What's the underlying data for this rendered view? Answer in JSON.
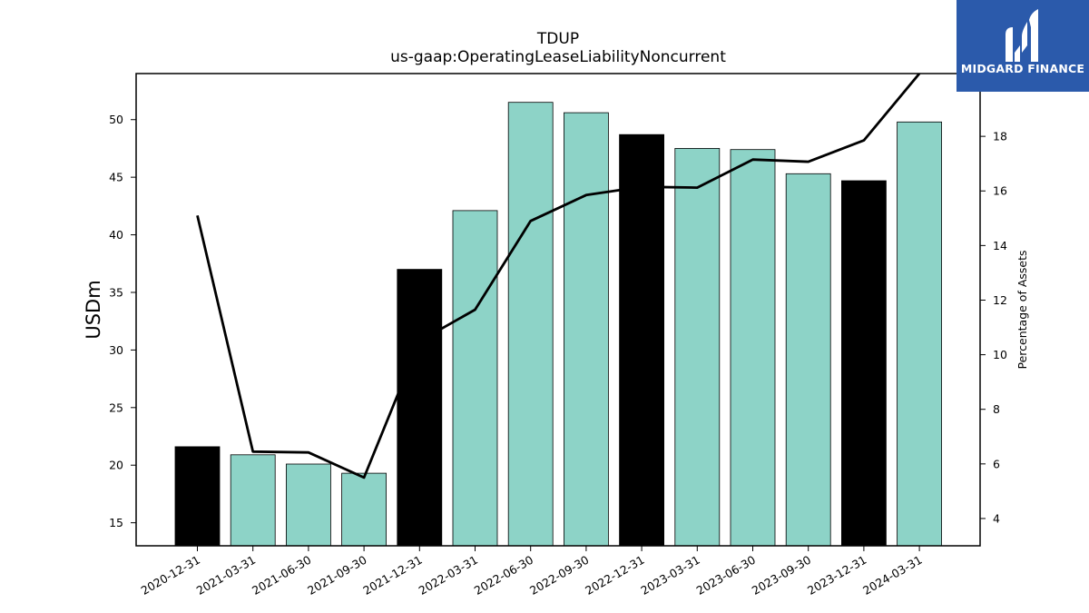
{
  "chart_data": {
    "type": "bar",
    "title": "TDUP",
    "subtitle": "us-gaap:OperatingLeaseLiabilityNoncurrent",
    "ylabel": "USDm",
    "y2label": "Percentage of Assets",
    "categories": [
      "2020-12-31",
      "2021-03-31",
      "2021-06-30",
      "2021-09-30",
      "2021-12-31",
      "2022-03-31",
      "2022-06-30",
      "2022-09-30",
      "2022-12-31",
      "2023-03-31",
      "2023-06-30",
      "2023-09-30",
      "2023-12-31",
      "2024-03-31"
    ],
    "series": [
      {
        "kind": "bar",
        "axis": "left",
        "values": [
          21.6,
          20.9,
          20.1,
          19.3,
          37.0,
          42.1,
          51.5,
          50.6,
          48.7,
          47.5,
          47.4,
          45.3,
          44.7,
          49.8
        ],
        "colors": [
          "#000000",
          "#8dd3c7",
          "#8dd3c7",
          "#8dd3c7",
          "#000000",
          "#8dd3c7",
          "#8dd3c7",
          "#8dd3c7",
          "#000000",
          "#8dd3c7",
          "#8dd3c7",
          "#8dd3c7",
          "#000000",
          "#8dd3c7"
        ]
      },
      {
        "kind": "line",
        "axis": "right",
        "color": "#000000",
        "values": [
          15.1,
          6.45,
          6.42,
          5.5,
          10.5,
          11.65,
          14.9,
          15.85,
          16.15,
          16.12,
          17.15,
          17.07,
          17.85,
          20.3
        ]
      }
    ],
    "ylim": [
      13,
      54
    ],
    "yticks": [
      15,
      20,
      25,
      30,
      35,
      40,
      45,
      50
    ],
    "y2lim": [
      3,
      20.3
    ],
    "y2ticks": [
      4,
      6,
      8,
      10,
      12,
      14,
      16,
      18
    ],
    "grid": false
  },
  "logo": {
    "text": "MIDGARD FINANCE",
    "color": "#2b5aab"
  }
}
